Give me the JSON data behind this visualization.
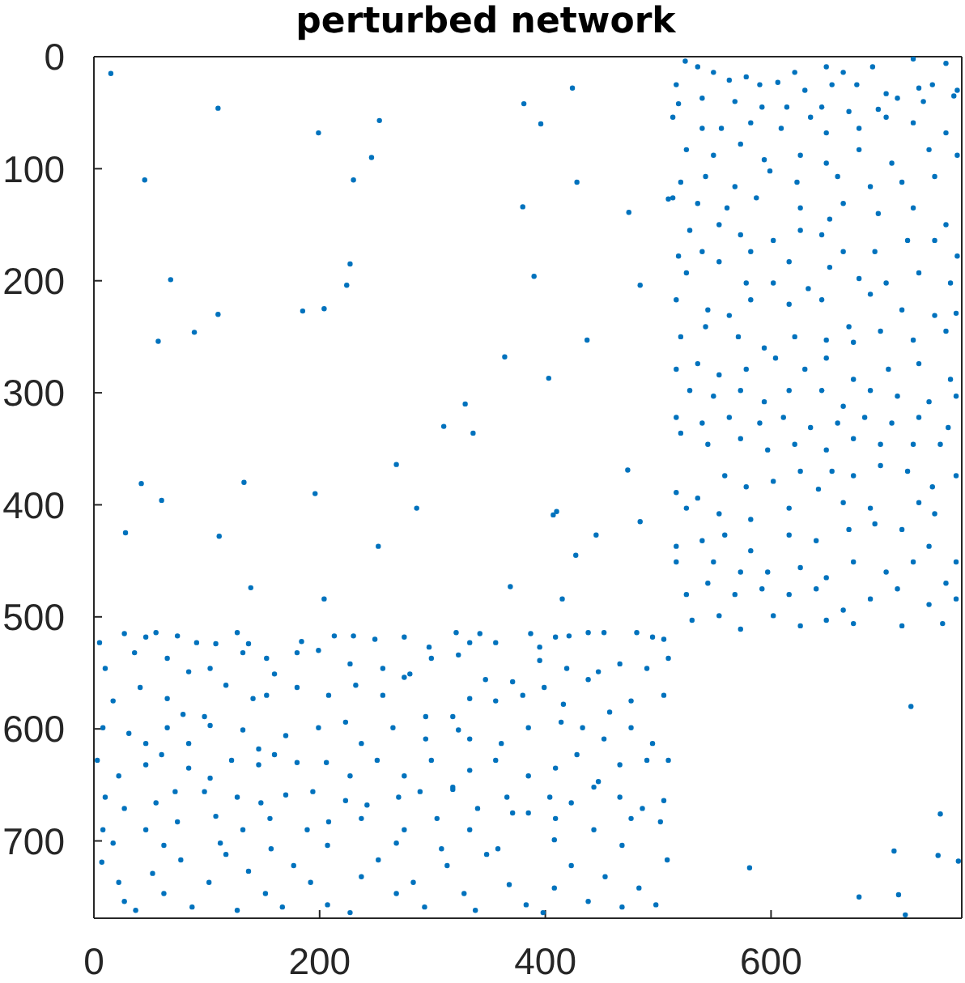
{
  "chart_data": {
    "type": "scatter",
    "title": "perturbed network",
    "marker": "circle",
    "xlim": [
      0,
      769
    ],
    "ylim": [
      769,
      0
    ],
    "xticks": [
      0,
      200,
      400,
      600
    ],
    "yticks": [
      0,
      100,
      200,
      300,
      400,
      500,
      600,
      700
    ],
    "series": [
      {
        "color": "#0072bd",
        "x": [
          524,
          535,
          549,
          578,
          621,
          649,
          664,
          690,
          726,
          755,
          516,
          563,
          590,
          606,
          630,
          654,
          676,
          702,
          731,
          743,
          765,
          518,
          539,
          568,
          592,
          614,
          645,
          669,
          695,
          712,
          735,
          762,
          513,
          539,
          556,
          582,
          609,
          635,
          649,
          678,
          702,
          726,
          755,
          525,
          549,
          573,
          594,
          626,
          649,
          678,
          707,
          740,
          765,
          520,
          542,
          568,
          599,
          623,
          659,
          688,
          716,
          745,
          513,
          535,
          561,
          587,
          626,
          652,
          664,
          695,
          726,
          755,
          528,
          554,
          573,
          602,
          626,
          645,
          664,
          692,
          721,
          745,
          765,
          518,
          539,
          582,
          616,
          525,
          554,
          578,
          602,
          633,
          652,
          678,
          702,
          731,
          759,
          516,
          544,
          563,
          582,
          616,
          645,
          669,
          688,
          716,
          745,
          764,
          520,
          542,
          571,
          594,
          621,
          649,
          673,
          697,
          726,
          755,
          516,
          535,
          554,
          578,
          604,
          630,
          649,
          673,
          704,
          731,
          759,
          528,
          549,
          573,
          594,
          616,
          645,
          664,
          688,
          712,
          740,
          764,
          516,
          539,
          563,
          590,
          611,
          635,
          659,
          683,
          707,
          731,
          757,
          520,
          544,
          573,
          597,
          621,
          649,
          673,
          697,
          726,
          750,
          516,
          535,
          559,
          578,
          602,
          626,
          654,
          673,
          697,
          721,
          743,
          764,
          525,
          554,
          582,
          616,
          642,
          664,
          688,
          731,
          745,
          516,
          539,
          559,
          582,
          616,
          640,
          669,
          692,
          716,
          740,
          764,
          516,
          549,
          573,
          597,
          626,
          649,
          673,
          702,
          726,
          755,
          525,
          544,
          568,
          592,
          616,
          640,
          664,
          688,
          712,
          740,
          764,
          530,
          554,
          573,
          602,
          626,
          649,
          673,
          716,
          752
        ],
        "values": [
          4,
          9,
          14,
          18,
          14,
          9,
          14,
          9,
          2,
          6,
          25,
          21,
          25,
          23,
          30,
          25,
          25,
          33,
          28,
          25,
          30,
          42,
          37,
          40,
          45,
          45,
          45,
          49,
          47,
          37,
          40,
          35,
          54,
          64,
          64,
          59,
          64,
          54,
          68,
          64,
          54,
          59,
          68,
          83,
          88,
          78,
          92,
          88,
          95,
          83,
          95,
          83,
          88,
          112,
          107,
          116,
          102,
          112,
          107,
          116,
          112,
          107,
          126,
          131,
          135,
          126,
          135,
          145,
          131,
          140,
          135,
          150,
          155,
          150,
          159,
          164,
          155,
          159,
          174,
          174,
          164,
          164,
          178,
          178,
          174,
          174,
          183,
          193,
          183,
          202,
          202,
          207,
          188,
          198,
          202,
          193,
          202,
          217,
          226,
          231,
          217,
          221,
          217,
          241,
          212,
          226,
          231,
          229,
          250,
          241,
          250,
          260,
          250,
          253,
          255,
          245,
          253,
          245,
          279,
          274,
          284,
          279,
          269,
          279,
          269,
          288,
          279,
          274,
          288,
          298,
          303,
          298,
          308,
          298,
          298,
          312,
          298,
          303,
          308,
          303,
          322,
          327,
          322,
          327,
          322,
          331,
          327,
          322,
          327,
          322,
          331,
          336,
          346,
          341,
          351,
          346,
          351,
          341,
          346,
          346,
          346,
          389,
          394,
          374,
          384,
          379,
          370,
          370,
          374,
          365,
          370,
          384,
          374,
          403,
          408,
          413,
          403,
          386,
          398,
          403,
          398,
          408,
          437,
          432,
          427,
          441,
          427,
          432,
          422,
          417,
          422,
          437,
          451,
          451,
          451,
          460,
          460,
          456,
          465,
          451,
          460,
          451,
          470,
          480,
          470,
          480,
          475,
          480,
          475,
          494,
          484,
          475,
          489,
          484,
          503,
          499,
          511,
          499,
          508,
          503,
          506,
          508,
          506
        ]
      },
      {
        "color": "#0072bd",
        "x": [
          5,
          27,
          46,
          55,
          74,
          91,
          108,
          127,
          137,
          153,
          184,
          213,
          230,
          249,
          275,
          297,
          321,
          333,
          342,
          356,
          387,
          395,
          409,
          421,
          438,
          452,
          481,
          495,
          505,
          10,
          36,
          65,
          84,
          103,
          132,
          160,
          180,
          199,
          227,
          256,
          280,
          299,
          323,
          347,
          371,
          395,
          419,
          447,
          466,
          490,
          509,
          17,
          41,
          65,
          79,
          98,
          117,
          141,
          153,
          180,
          208,
          232,
          256,
          275,
          294,
          318,
          333,
          356,
          380,
          399,
          416,
          438,
          457,
          476,
          505,
          8,
          31,
          46,
          65,
          84,
          103,
          132,
          146,
          170,
          199,
          223,
          237,
          265,
          294,
          323,
          333,
          361,
          385,
          414,
          433,
          452,
          476,
          495,
          3,
          22,
          46,
          60,
          84,
          103,
          122,
          146,
          160,
          180,
          206,
          227,
          251,
          275,
          299,
          318,
          333,
          356,
          385,
          409,
          428,
          447,
          466,
          490,
          509,
          10,
          27,
          55,
          72,
          98,
          127,
          148,
          170,
          194,
          223,
          242,
          270,
          289,
          318,
          340,
          366,
          385,
          404,
          423,
          443,
          466,
          486,
          505,
          8,
          46,
          74,
          108,
          132,
          156,
          189,
          208,
          237,
          275,
          304,
          333,
          371,
          409,
          443,
          476,
          502,
          7,
          22,
          27,
          37,
          52,
          62,
          77,
          87,
          102,
          117,
          127,
          137,
          152,
          167,
          177,
          192,
          207,
          227,
          237,
          252,
          268,
          283,
          293,
          313,
          328,
          338,
          348,
          368,
          383,
          398,
          408,
          423,
          438,
          453,
          468,
          483,
          498,
          508,
          17,
          62,
          112,
          157,
          207,
          268,
          308,
          358,
          408,
          468
        ],
        "values": [
          523,
          515,
          518,
          514,
          517,
          523,
          524,
          514,
          524,
          537,
          522,
          517,
          517,
          520,
          518,
          527,
          514,
          523,
          515,
          523,
          515,
          527,
          518,
          517,
          514,
          514,
          514,
          518,
          520,
          546,
          532,
          537,
          549,
          546,
          532,
          551,
          532,
          530,
          542,
          546,
          551,
          537,
          534,
          556,
          558,
          539,
          546,
          549,
          542,
          546,
          537,
          575,
          563,
          573,
          587,
          589,
          561,
          573,
          570,
          563,
          570,
          561,
          570,
          554,
          589,
          589,
          573,
          575,
          570,
          563,
          578,
          556,
          585,
          575,
          570,
          599,
          604,
          613,
          599,
          613,
          597,
          601,
          618,
          606,
          599,
          594,
          613,
          599,
          609,
          601,
          609,
          613,
          599,
          594,
          599,
          609,
          599,
          613,
          628,
          642,
          632,
          623,
          635,
          644,
          628,
          632,
          623,
          630,
          630,
          642,
          628,
          642,
          628,
          652,
          637,
          628,
          642,
          635,
          623,
          647,
          632,
          628,
          628,
          661,
          671,
          666,
          656,
          656,
          661,
          666,
          659,
          656,
          664,
          668,
          661,
          656,
          654,
          671,
          661,
          675,
          661,
          666,
          652,
          661,
          671,
          664,
          690,
          690,
          683,
          678,
          690,
          680,
          690,
          683,
          680,
          690,
          680,
          690,
          675,
          680,
          690,
          680,
          683,
          719,
          737,
          754,
          762,
          729,
          747,
          717,
          759,
          737,
          712,
          762,
          727,
          747,
          759,
          722,
          737,
          757,
          764,
          732,
          717,
          747,
          737,
          759,
          722,
          747,
          762,
          712,
          739,
          757,
          764,
          742,
          722,
          754,
          732,
          759,
          742,
          757,
          717,
          702,
          704,
          702,
          707,
          704,
          702,
          707,
          707,
          699,
          704
        ]
      },
      {
        "color": "#0072bd",
        "x": [
          15,
          110,
          199,
          253,
          246,
          230,
          45,
          381,
          424,
          396,
          428,
          380,
          474,
          509,
          68,
          227,
          224,
          390,
          484,
          110,
          185,
          204,
          57,
          89,
          437,
          364,
          403,
          329,
          310,
          336,
          268,
          42,
          60,
          133,
          196,
          286,
          473,
          28,
          111,
          252,
          407,
          410,
          484,
          445,
          427,
          139,
          204,
          369,
          415
        ],
        "values": [
          15,
          46,
          68,
          57,
          90,
          110,
          110,
          42,
          28,
          60,
          112,
          134,
          139,
          127,
          199,
          185,
          204,
          196,
          204,
          230,
          227,
          225,
          254,
          246,
          253,
          268,
          287,
          310,
          330,
          336,
          364,
          381,
          396,
          380,
          390,
          403,
          369,
          425,
          428,
          437,
          409,
          406,
          415,
          427,
          445,
          474,
          484,
          473,
          484
        ]
      },
      {
        "color": "#0072bd",
        "x": [
          724,
          750,
          709,
          748,
          581,
          766,
          678,
          713,
          719
        ],
        "values": [
          580,
          676,
          709,
          713,
          724,
          718,
          750,
          748,
          766
        ]
      }
    ]
  }
}
